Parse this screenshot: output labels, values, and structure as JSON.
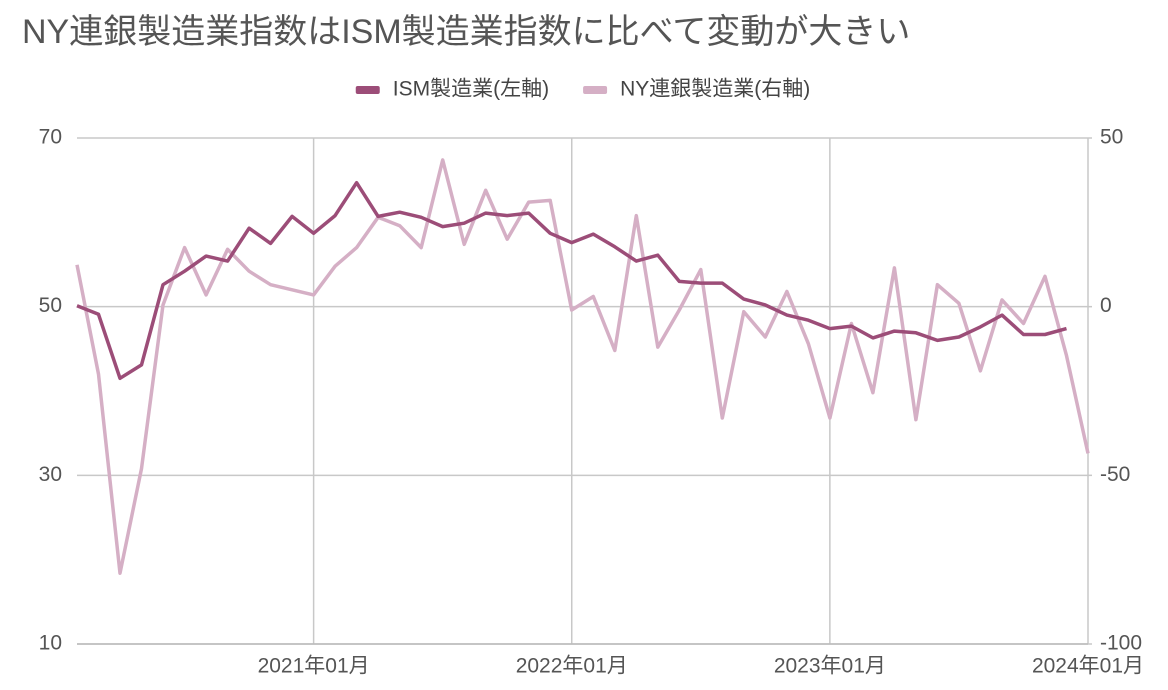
{
  "chart_data": {
    "type": "line",
    "title": "NY連銀製造業指数はISM製造業指数に比べて変動が大きい",
    "categories": [
      null,
      null,
      null,
      null,
      null,
      null,
      null,
      null,
      null,
      null,
      null,
      "2021年01月",
      null,
      null,
      null,
      null,
      null,
      null,
      null,
      null,
      null,
      null,
      null,
      "2022年01月",
      null,
      null,
      null,
      null,
      null,
      null,
      null,
      null,
      null,
      null,
      null,
      "2023年01月",
      null,
      null,
      null,
      null,
      null,
      null,
      null,
      null,
      null,
      null,
      null,
      "2024年01月"
    ],
    "series": [
      {
        "name": "ISM製造業(左軸)",
        "color": "#9c4d78",
        "axis": "y",
        "values": [
          50.1,
          49.1,
          41.5,
          43.1,
          52.6,
          54.2,
          56.0,
          55.4,
          59.3,
          57.5,
          60.7,
          58.7,
          60.8,
          64.7,
          60.7,
          61.2,
          60.6,
          59.5,
          59.9,
          61.1,
          60.8,
          61.1,
          58.7,
          57.6,
          58.6,
          57.1,
          55.4,
          56.1,
          53.0,
          52.8,
          52.8,
          50.9,
          50.2,
          49.0,
          48.4,
          47.4,
          47.7,
          46.3,
          47.1,
          46.9,
          46.0,
          46.4,
          47.6,
          49.0,
          46.7,
          46.7,
          47.4,
          null
        ]
      },
      {
        "name": "NY連銀製造業(右軸)",
        "color": "#d5afc5",
        "axis": "y2",
        "values": [
          12.4,
          -20,
          -79,
          -48,
          0.5,
          17.5,
          3.5,
          17,
          10.5,
          6.5,
          5,
          3.5,
          12,
          17.5,
          26.5,
          24,
          17.5,
          43.5,
          18.5,
          34.5,
          20,
          31,
          31.5,
          -1,
          3,
          -13,
          27,
          -12,
          -1,
          11,
          -33,
          -1.5,
          -9,
          4.5,
          -11,
          -33,
          -5,
          -25.5,
          11.5,
          -33.5,
          6.5,
          1,
          -19,
          2,
          -5,
          9,
          -14.5,
          -43.5
        ]
      }
    ],
    "ylim": [
      10,
      70
    ],
    "yticks": [
      10,
      30,
      50,
      70
    ],
    "y2lim": [
      -100,
      50
    ],
    "y2ticks": [
      -100,
      -50,
      0,
      50
    ],
    "grid": true,
    "legend": "top"
  }
}
